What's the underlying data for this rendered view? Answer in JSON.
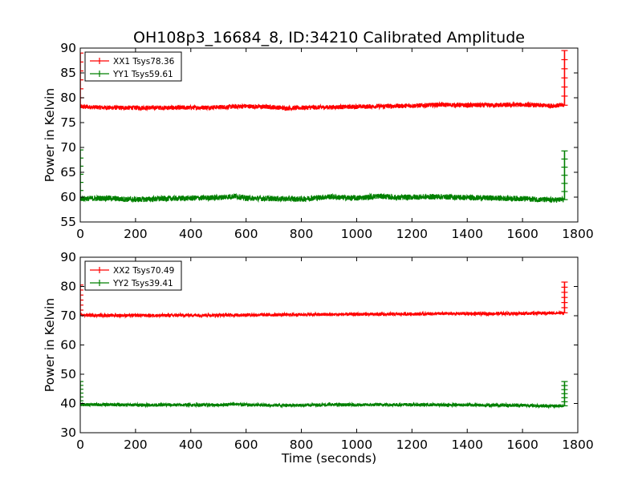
{
  "figure": {
    "title": "OH108p3_16684_8, ID:34210 Calibrated Amplitude",
    "xlabel": "Time (seconds)"
  },
  "chart_data": [
    {
      "type": "line",
      "ylabel": "Power in Kelvin",
      "xlabel": "",
      "xlim": [
        0,
        1800
      ],
      "ylim": [
        55,
        90
      ],
      "xticks": [
        0,
        200,
        400,
        600,
        800,
        1000,
        1200,
        1400,
        1600,
        1800
      ],
      "yticks": [
        55,
        60,
        65,
        70,
        75,
        80,
        85,
        90
      ],
      "legend_position": "top-left",
      "series": [
        {
          "name": "XX1 Tsys78.36",
          "color": "#ff0000",
          "noise": 0.45,
          "x": [
            0,
            100,
            200,
            300,
            400,
            500,
            600,
            700,
            750,
            800,
            900,
            1000,
            1100,
            1200,
            1300,
            1400,
            1500,
            1600,
            1700,
            1750
          ],
          "y": [
            78.2,
            78.0,
            78.0,
            78.0,
            78.0,
            78.1,
            78.3,
            78.1,
            77.9,
            78.0,
            78.1,
            78.2,
            78.3,
            78.4,
            78.6,
            78.5,
            78.5,
            78.6,
            78.4,
            78.5
          ],
          "spikes": [
            {
              "x": 0,
              "y_top": 89
            },
            {
              "x": 1752,
              "y_top": 89.5
            }
          ]
        },
        {
          "name": "YY1 Tsys59.61",
          "color": "#008000",
          "noise": 0.55,
          "x": [
            0,
            100,
            150,
            200,
            300,
            400,
            500,
            560,
            600,
            700,
            800,
            900,
            950,
            1000,
            1080,
            1150,
            1200,
            1300,
            1400,
            1500,
            1600,
            1700,
            1750
          ],
          "y": [
            59.7,
            59.8,
            59.6,
            59.5,
            59.7,
            59.8,
            59.9,
            60.2,
            59.8,
            59.7,
            59.6,
            60.1,
            59.9,
            59.8,
            60.2,
            59.9,
            60.0,
            60.1,
            59.9,
            59.8,
            59.7,
            59.4,
            59.5
          ],
          "spikes": [
            {
              "x": 0,
              "y_top": 69.5
            },
            {
              "x": 1752,
              "y_top": 69.3
            }
          ]
        }
      ]
    },
    {
      "type": "line",
      "ylabel": "Power in Kelvin",
      "xlabel": "Time (seconds)",
      "xlim": [
        0,
        1800
      ],
      "ylim": [
        30,
        90
      ],
      "xticks": [
        0,
        200,
        400,
        600,
        800,
        1000,
        1200,
        1400,
        1600,
        1800
      ],
      "yticks": [
        30,
        40,
        50,
        60,
        70,
        80,
        90
      ],
      "legend_position": "top-left",
      "series": [
        {
          "name": "XX2 Tsys70.49",
          "color": "#ff0000",
          "noise": 0.55,
          "x": [
            0,
            100,
            200,
            300,
            400,
            500,
            600,
            700,
            800,
            900,
            1000,
            1100,
            1200,
            1300,
            1400,
            1500,
            1600,
            1700,
            1750
          ],
          "y": [
            70.2,
            70.1,
            70.1,
            70.1,
            70.2,
            70.2,
            70.3,
            70.3,
            70.4,
            70.4,
            70.5,
            70.5,
            70.6,
            70.7,
            70.7,
            70.7,
            70.8,
            70.9,
            71.0
          ],
          "spikes": [
            {
              "x": 0,
              "y_top": 80.5
            },
            {
              "x": 1752,
              "y_top": 81.5
            }
          ]
        },
        {
          "name": "YY2 Tsys39.41",
          "color": "#008000",
          "noise": 0.55,
          "x": [
            0,
            100,
            200,
            300,
            400,
            500,
            560,
            600,
            700,
            800,
            900,
            1000,
            1100,
            1200,
            1300,
            1400,
            1500,
            1600,
            1700,
            1750
          ],
          "y": [
            39.6,
            39.6,
            39.5,
            39.5,
            39.5,
            39.5,
            39.8,
            39.5,
            39.4,
            39.4,
            39.6,
            39.5,
            39.6,
            39.6,
            39.5,
            39.5,
            39.4,
            39.4,
            39.1,
            39.2
          ],
          "spikes": [
            {
              "x": 0,
              "y_top": 47.5
            },
            {
              "x": 1752,
              "y_top": 47.5
            }
          ]
        }
      ]
    }
  ]
}
